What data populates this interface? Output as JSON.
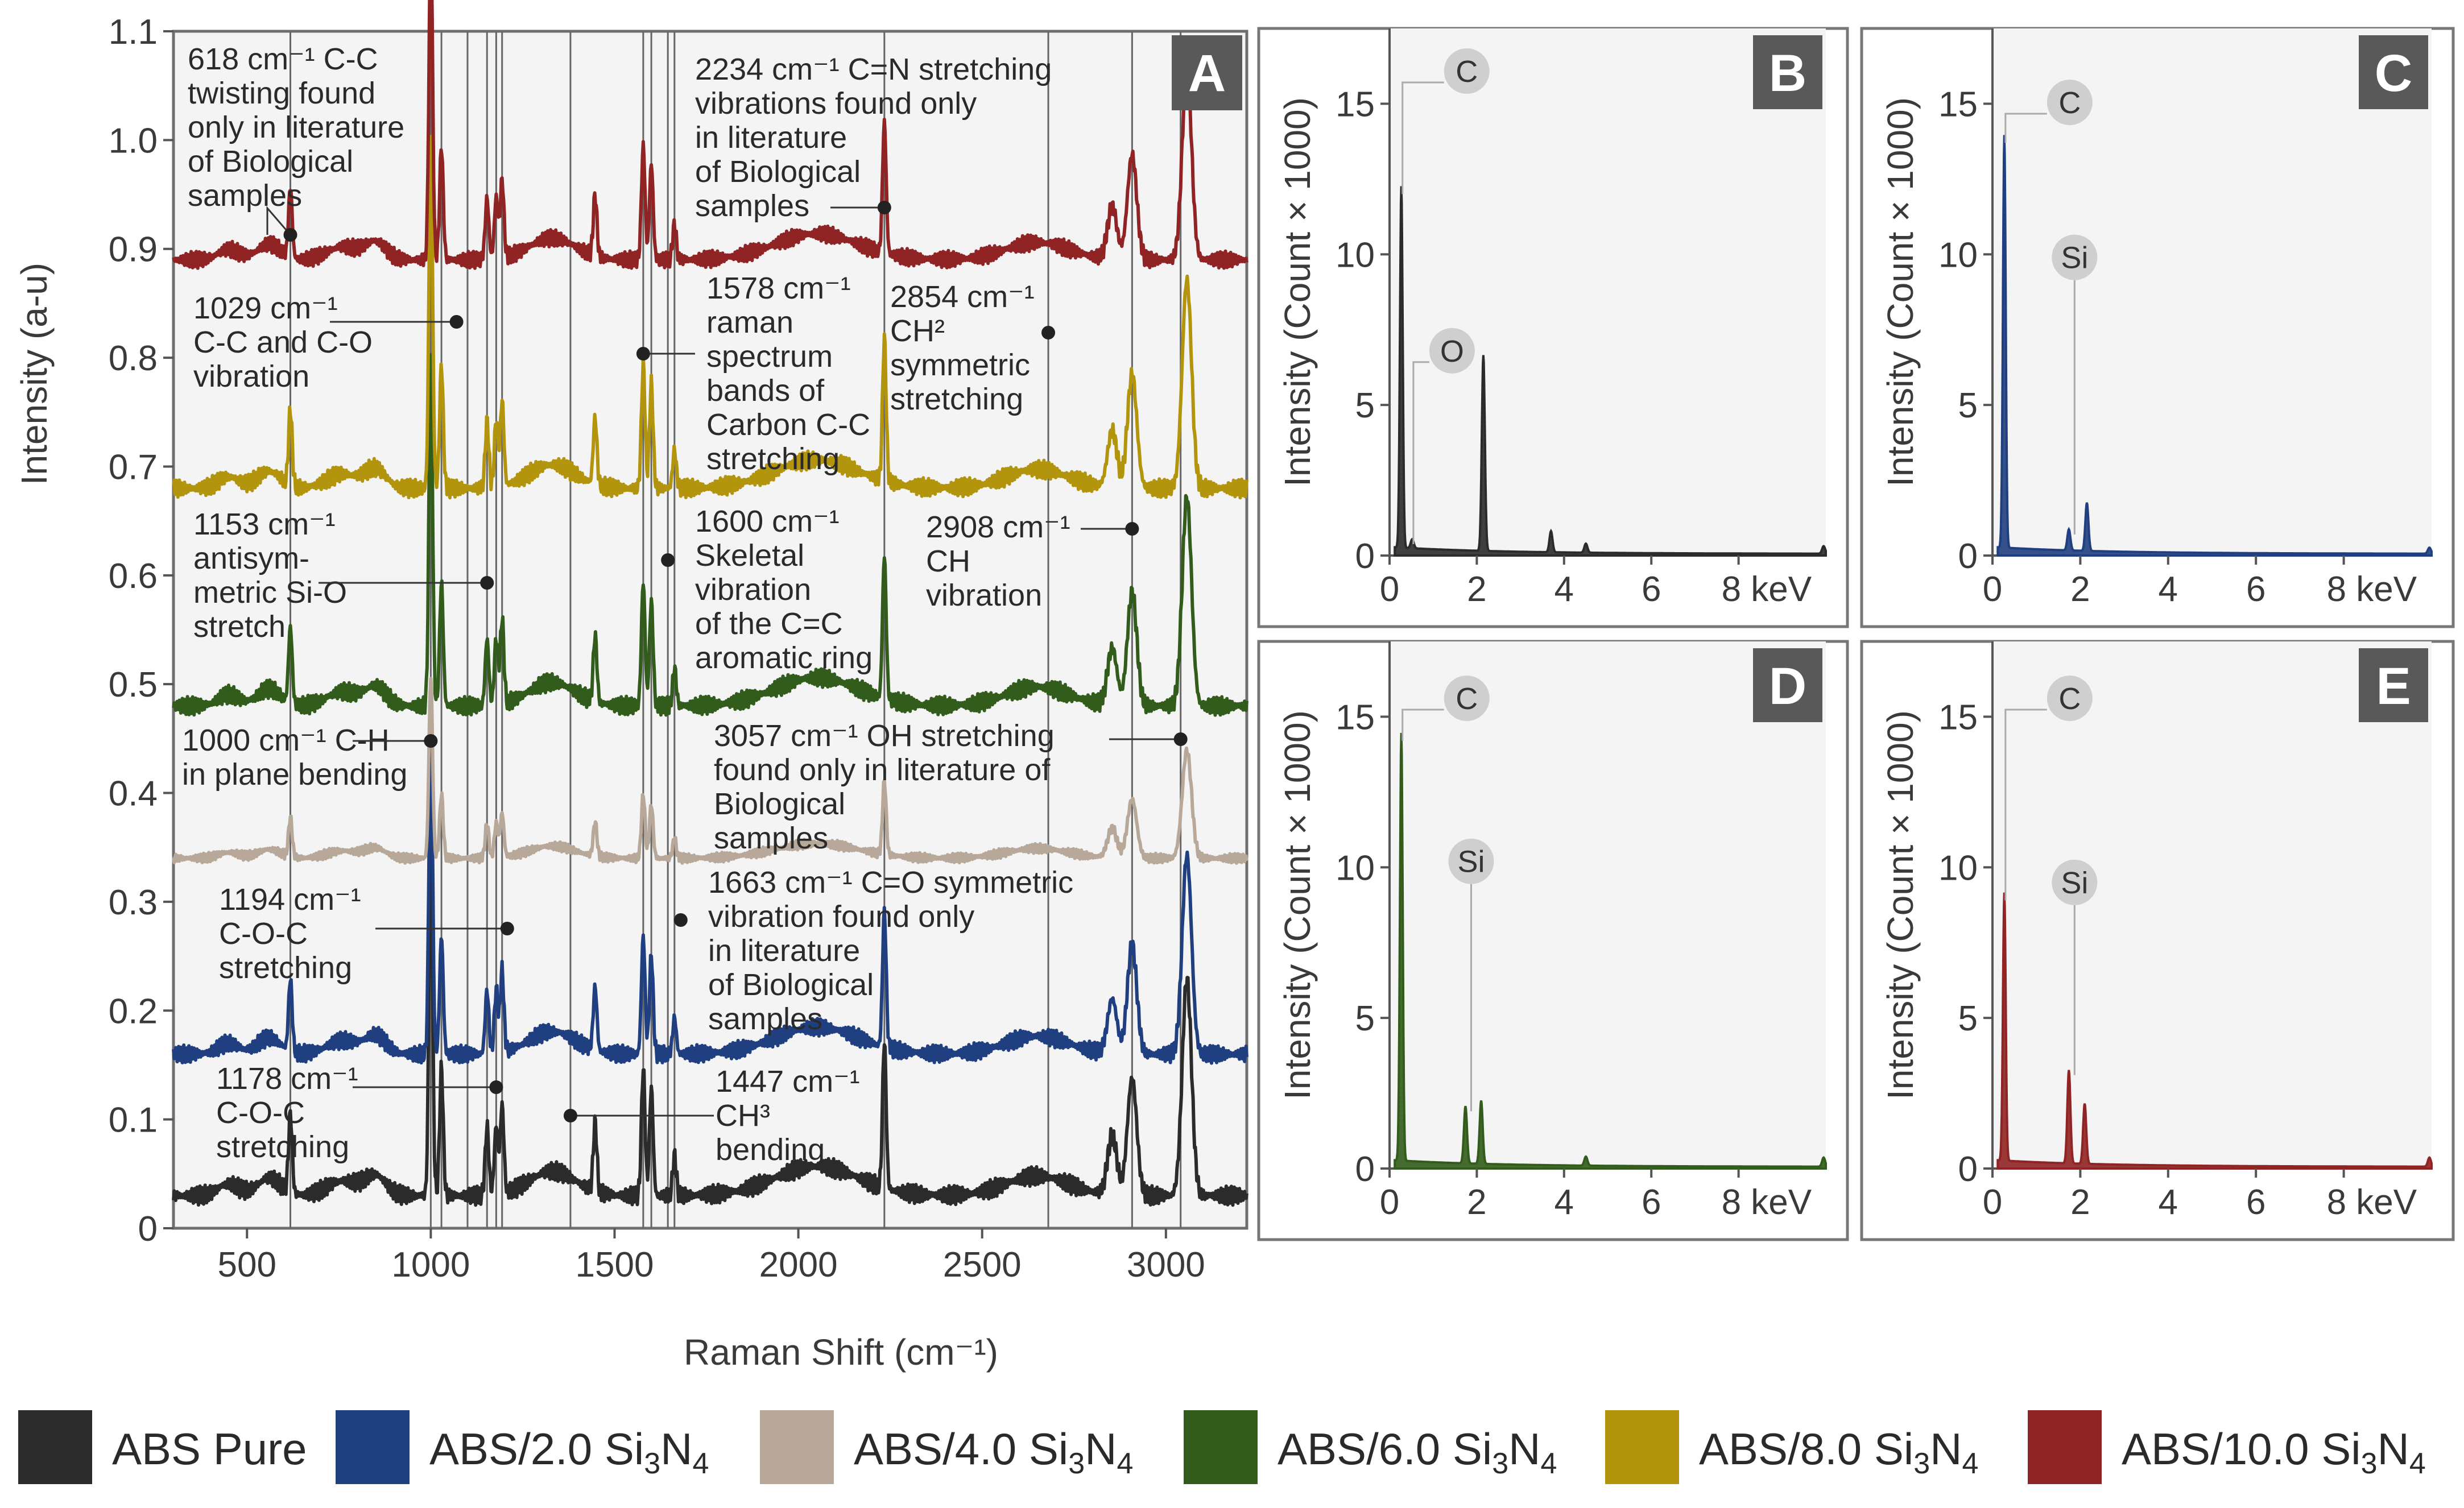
{
  "colors": {
    "ABS Pure": "#2b2b2b",
    "ABS/2.0 Si3N4": "#1f3f80",
    "ABS/4.0 Si3N4": "#b7a899",
    "ABS/6.0 Si3N4": "#325c1c",
    "ABS/8.0 Si3N4": "#b3940d",
    "ABS/10.0 Si3N4": "#902424",
    "panel_bg": "#f4f4f4",
    "badge_bg": "#595959"
  },
  "legend": [
    {
      "name": "ABS Pure",
      "label": "ABS Pure",
      "main": "ABS Pure",
      "sub_3": "",
      "n4": ""
    },
    {
      "name": "ABS/2.0 Si3N4",
      "label": "ABS/2.0 Si₃N₄",
      "main": "ABS/2.0 Si",
      "sub_3": "3",
      "n4": "N",
      "sub_4": "4"
    },
    {
      "name": "ABS/4.0 Si3N4",
      "label": "ABS/4.0 Si₃N₄",
      "main": "ABS/4.0 Si",
      "sub_3": "3",
      "n4": "N",
      "sub_4": "4"
    },
    {
      "name": "ABS/6.0 Si3N4",
      "label": "ABS/6.0 Si₃N₄",
      "main": "ABS/6.0 Si",
      "sub_3": "3",
      "n4": "N",
      "sub_4": "4"
    },
    {
      "name": "ABS/8.0 Si3N4",
      "label": "ABS/8.0 Si₃N₄",
      "main": "ABS/8.0 Si",
      "sub_3": "3",
      "n4": "N",
      "sub_4": "4"
    },
    {
      "name": "ABS/10.0 Si3N4",
      "label": "ABS/10.0 Si₃N₄",
      "main": "ABS/10.0 Si",
      "sub_3": "3",
      "n4": "N",
      "sub_4": "4"
    }
  ],
  "chart_data": [
    {
      "panel": "A",
      "type": "line",
      "title": "",
      "xlabel": "Raman Shift (cm⁻¹)",
      "ylabel": "Intensity (a-u)",
      "xlim": [
        300,
        3220
      ],
      "ylim": [
        0,
        1.1
      ],
      "xticks": [
        500,
        1000,
        1500,
        2000,
        2500,
        3000
      ],
      "xtick_labels": [
        "500",
        "1000",
        "1500",
        "2000",
        "2500",
        "3000"
      ],
      "yticks": [
        0,
        0.1,
        0.2,
        0.3,
        0.4,
        0.5,
        0.6,
        0.7,
        0.8,
        0.9,
        1.0,
        1.1
      ],
      "ytick_labels": [
        "0",
        "0.1",
        "0.2",
        "0.3",
        "0.4",
        "0.5",
        "0.6",
        "0.7",
        "0.8",
        "0.9",
        "1.0",
        "1.1"
      ],
      "grid": false,
      "reference_lines_cm": [
        618,
        1000,
        1029,
        1100,
        1153,
        1178,
        1194,
        1380,
        1578,
        1600,
        1645,
        1663,
        2234,
        2680,
        2908,
        3040
      ],
      "peaks_cm": [
        618,
        1000,
        1029,
        1153,
        1178,
        1194,
        1447,
        1578,
        1600,
        1663,
        2234,
        2854,
        2908,
        3057
      ],
      "peak_heights": [
        0.08,
        0.37,
        0.13,
        0.07,
        0.07,
        0.09,
        0.07,
        0.13,
        0.11,
        0.04,
        0.15,
        0.06,
        0.12,
        0.22
      ],
      "series": [
        {
          "name": "ABS Pure",
          "baseline": 0.03,
          "scale": 0.9
        },
        {
          "name": "ABS/2.0 Si3N4",
          "baseline": 0.16,
          "scale": 0.83
        },
        {
          "name": "ABS/4.0 Si3N4",
          "baseline": 0.34,
          "scale": 0.45
        },
        {
          "name": "ABS/6.0 Si3N4",
          "baseline": 0.48,
          "scale": 0.87
        },
        {
          "name": "ABS/8.0 Si3N4",
          "baseline": 0.68,
          "scale": 0.87
        },
        {
          "name": "ABS/10.0 Si3N4",
          "baseline": 0.89,
          "scale": 0.8
        }
      ],
      "annotations": [
        {
          "lines": [
            "618 cm⁻¹ C-C",
            "twisting found",
            "only in literature",
            "of Biological",
            "samples"
          ],
          "peak": 618
        },
        {
          "lines": [
            "1029 cm⁻¹",
            "C-C and C-O",
            "vibration"
          ],
          "peak": 1029
        },
        {
          "lines": [
            "1153 cm⁻¹",
            "antisym-",
            "metric Si-O",
            "stretch"
          ],
          "peak": 1153
        },
        {
          "lines": [
            "1000 cm⁻¹ C-H",
            "in plane bending"
          ],
          "peak": 1000
        },
        {
          "lines": [
            "1194 cm⁻¹",
            "C-O-C",
            "stretching"
          ],
          "peak": 1194
        },
        {
          "lines": [
            "1178 cm⁻¹",
            "C-O-C",
            "stretching"
          ],
          "peak": 1178
        },
        {
          "lines": [
            "2234 cm⁻¹ C=N stretching",
            "vibrations found only",
            "in literature",
            "of Biological",
            "samples"
          ],
          "peak": 2234
        },
        {
          "lines": [
            "1578 cm⁻¹",
            "raman",
            "spectrum",
            "bands of",
            "Carbon C-C",
            "stretching"
          ],
          "peak": 1578
        },
        {
          "lines": [
            "2854 cm⁻¹",
            "CH²",
            "symmetric",
            "stretching"
          ],
          "peak": 2854
        },
        {
          "lines": [
            "1600 cm⁻¹",
            "Skeletal",
            "vibration",
            "of the C=C",
            "aromatic ring"
          ],
          "peak": 1600
        },
        {
          "lines": [
            "2908 cm⁻¹",
            "CH",
            "vibration"
          ],
          "peak": 2908
        },
        {
          "lines": [
            "3057 cm⁻¹ OH stretching",
            "found only in literature of",
            "Biological",
            "samples"
          ],
          "peak": 3057
        },
        {
          "lines": [
            "1663 cm⁻¹ C=O symmetric",
            "vibration found only",
            "in literature",
            "of Biological",
            "samples"
          ],
          "peak": 1663
        },
        {
          "lines": [
            "1447 cm⁻¹",
            "CH³",
            "bending"
          ],
          "peak": 1447
        }
      ]
    },
    {
      "panel": "B",
      "type": "line",
      "xlabel": "",
      "ylabel": "Intensity (Count × 1000)",
      "xlim": [
        0,
        10
      ],
      "ylim": [
        0,
        17.5
      ],
      "xticks": [
        0,
        2,
        4,
        6,
        8
      ],
      "xtick_labels": [
        "0",
        "2",
        "4",
        "6",
        "8 keV"
      ],
      "yticks": [
        0,
        5,
        10,
        15
      ],
      "ytick_labels": [
        "0",
        "5",
        "10",
        "15"
      ],
      "series": [
        {
          "name": "ABS Pure",
          "peaks": [
            {
              "x": 0.27,
              "y": 12.0
            },
            {
              "x": 0.52,
              "y": 0.3
            },
            {
              "x": 2.15,
              "y": 6.5
            },
            {
              "x": 3.7,
              "y": 0.7
            },
            {
              "x": 4.5,
              "y": 0.3
            },
            {
              "x": 9.95,
              "y": 0.25
            }
          ]
        }
      ],
      "peak_labels": [
        {
          "text": "C",
          "x": 0.27,
          "y": 12.0
        },
        {
          "text": "O",
          "x": 0.52,
          "y": 0.3
        }
      ]
    },
    {
      "panel": "C",
      "type": "line",
      "xlabel": "",
      "ylabel": "Intensity (Count × 1000)",
      "xlim": [
        0,
        10
      ],
      "ylim": [
        0,
        17.5
      ],
      "xticks": [
        0,
        2,
        4,
        6,
        8
      ],
      "xtick_labels": [
        "0",
        "2",
        "4",
        "6",
        "8 keV"
      ],
      "yticks": [
        0,
        5,
        10,
        15
      ],
      "ytick_labels": [
        "0",
        "5",
        "10",
        "15"
      ],
      "series": [
        {
          "name": "ABS/2.0 Si3N4",
          "peaks": [
            {
              "x": 0.27,
              "y": 13.7
            },
            {
              "x": 1.74,
              "y": 0.7
            },
            {
              "x": 2.15,
              "y": 1.6
            },
            {
              "x": 9.95,
              "y": 0.2
            }
          ]
        }
      ],
      "peak_labels": [
        {
          "text": "C",
          "x": 0.27,
          "y": 13.7
        },
        {
          "text": "Si",
          "x": 1.74,
          "y": 0.7
        }
      ]
    },
    {
      "panel": "D",
      "type": "line",
      "xlabel": "",
      "ylabel": "Intensity (Count × 1000)",
      "xlim": [
        0,
        10
      ],
      "ylim": [
        0,
        17.5
      ],
      "xticks": [
        0,
        2,
        4,
        6,
        8
      ],
      "xtick_labels": [
        "0",
        "2",
        "4",
        "6",
        "8 keV"
      ],
      "yticks": [
        0,
        5,
        10,
        15
      ],
      "ytick_labels": [
        "0",
        "5",
        "10",
        "15"
      ],
      "series": [
        {
          "name": "ABS/6.0 Si3N4",
          "peaks": [
            {
              "x": 0.27,
              "y": 14.2
            },
            {
              "x": 1.74,
              "y": 1.9
            },
            {
              "x": 2.1,
              "y": 2.1
            },
            {
              "x": 4.5,
              "y": 0.3
            },
            {
              "x": 9.95,
              "y": 0.3
            }
          ]
        }
      ],
      "peak_labels": [
        {
          "text": "C",
          "x": 0.27,
          "y": 14.2
        },
        {
          "text": "Si",
          "x": 1.74,
          "y": 1.9
        }
      ]
    },
    {
      "panel": "E",
      "type": "line",
      "xlabel": "",
      "ylabel": "Intensity (Count × 1000)",
      "xlim": [
        0,
        10
      ],
      "ylim": [
        0,
        17.5
      ],
      "xticks": [
        0,
        2,
        4,
        6,
        8
      ],
      "xtick_labels": [
        "0",
        "2",
        "4",
        "6",
        "8 keV"
      ],
      "yticks": [
        0,
        5,
        10,
        15
      ],
      "ytick_labels": [
        "0",
        "5",
        "10",
        "15"
      ],
      "series": [
        {
          "name": "ABS/10.0 Si3N4",
          "peaks": [
            {
              "x": 0.27,
              "y": 8.9
            },
            {
              "x": 1.74,
              "y": 3.1
            },
            {
              "x": 2.1,
              "y": 2.0
            },
            {
              "x": 9.95,
              "y": 0.3
            }
          ]
        }
      ],
      "peak_labels": [
        {
          "text": "C",
          "x": 0.27,
          "y": 8.9
        },
        {
          "text": "Si",
          "x": 1.74,
          "y": 3.1
        }
      ]
    }
  ]
}
